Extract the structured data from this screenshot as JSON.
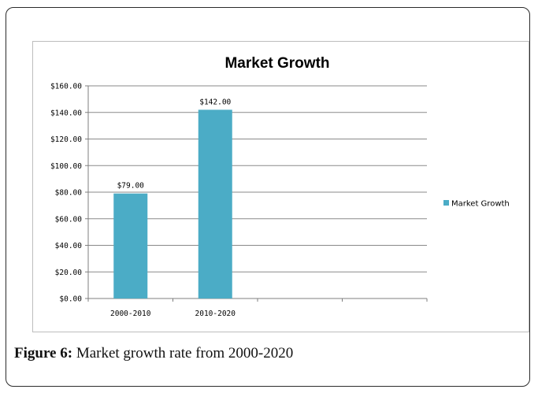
{
  "figure": {
    "caption_label": "Figure 6:",
    "caption_text": " Market growth rate from 2000-2020"
  },
  "chart_data": {
    "type": "bar",
    "title": "Market Growth",
    "categories": [
      "2000-2010",
      "2010-2020",
      "",
      ""
    ],
    "series": [
      {
        "name": "Market Growth",
        "values": [
          79,
          142,
          null,
          null
        ],
        "labels": [
          "$79.00",
          "$142.00",
          "",
          ""
        ],
        "color": "#4bacc6"
      }
    ],
    "y_ticks": [
      "$0.00",
      "$20.00",
      "$40.00",
      "$60.00",
      "$80.00",
      "$100.00",
      "$120.00",
      "$140.00",
      "$160.00"
    ],
    "ylim": [
      0,
      160
    ],
    "ystep": 20,
    "grid": true,
    "legend_position": "right",
    "xlabel": "",
    "ylabel": ""
  }
}
